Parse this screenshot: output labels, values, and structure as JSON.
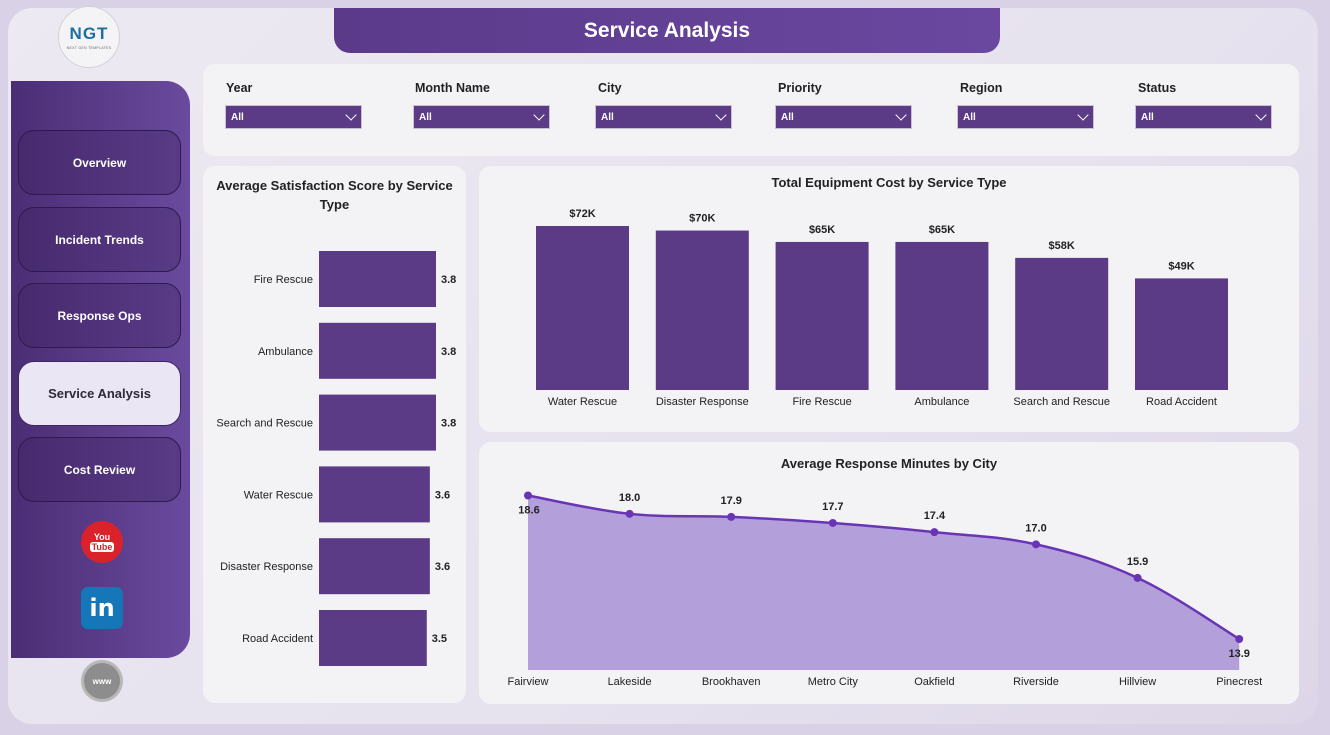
{
  "header": {
    "title": "Service Analysis"
  },
  "logo": {
    "text": "NGT",
    "subtext": "NEXT GEN TEMPLATES"
  },
  "sidebar": {
    "items": [
      {
        "label": "Overview"
      },
      {
        "label": "Incident Trends"
      },
      {
        "label": "Response Ops"
      },
      {
        "label": "Service Analysis",
        "active": true
      },
      {
        "label": "Cost Review"
      }
    ],
    "social": {
      "youtube_top": "You",
      "youtube_bottom": "Tube",
      "linkedin": "in",
      "web": "www"
    }
  },
  "filters": [
    {
      "label": "Year",
      "value": "All"
    },
    {
      "label": "Month Name",
      "value": "All"
    },
    {
      "label": "City",
      "value": "All"
    },
    {
      "label": "Priority",
      "value": "All"
    },
    {
      "label": "Region",
      "value": "All"
    },
    {
      "label": "Status",
      "value": "All"
    }
  ],
  "colors": {
    "accent": "#5b3a86",
    "area_fill": "#b3a0db",
    "line": "#6a35b5"
  },
  "chart_data": [
    {
      "type": "bar",
      "orientation": "horizontal",
      "title": "Average Satisfaction Score by Service Type",
      "categories": [
        "Fire Rescue",
        "Ambulance",
        "Search and Rescue",
        "Water Rescue",
        "Disaster Response",
        "Road Accident"
      ],
      "values": [
        3.8,
        3.8,
        3.8,
        3.6,
        3.6,
        3.5
      ],
      "value_labels": [
        "3.8",
        "3.8",
        "3.8",
        "3.6",
        "3.6",
        "3.5"
      ]
    },
    {
      "type": "bar",
      "title": "Total Equipment Cost by Service Type",
      "categories": [
        "Water Rescue",
        "Disaster Response",
        "Fire Rescue",
        "Ambulance",
        "Search and Rescue",
        "Road Accident"
      ],
      "values": [
        72,
        70,
        65,
        65,
        58,
        49
      ],
      "value_labels": [
        "$72K",
        "$70K",
        "$65K",
        "$65K",
        "$58K",
        "$49K"
      ]
    },
    {
      "type": "area",
      "title": "Average Response Minutes by City",
      "categories": [
        "Fairview",
        "Lakeside",
        "Brookhaven",
        "Metro City",
        "Oakfield",
        "Riverside",
        "Hillview",
        "Pinecrest"
      ],
      "values": [
        18.6,
        18.0,
        17.9,
        17.7,
        17.4,
        17.0,
        15.9,
        13.9
      ],
      "value_labels": [
        "18.6",
        "18.0",
        "17.9",
        "17.7",
        "17.4",
        "17.0",
        "15.9",
        "13.9"
      ]
    }
  ]
}
